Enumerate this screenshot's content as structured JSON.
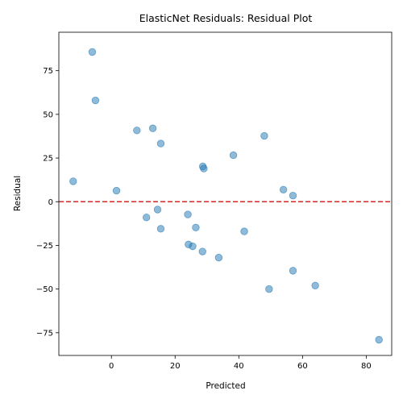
{
  "chart_data": {
    "type": "scatter",
    "title": "ElasticNet Residuals: Residual Plot",
    "xlabel": "Predicted",
    "ylabel": "Residual",
    "xlim": [
      -16.5,
      88
    ],
    "ylim": [
      -88,
      97
    ],
    "xticks": [
      0,
      20,
      40,
      60,
      80
    ],
    "yticks": [
      -75,
      -50,
      -25,
      0,
      25,
      50,
      75
    ],
    "grid": false,
    "point_color": "#1f77b4",
    "point_alpha": 0.5,
    "reference_line": {
      "y": 0,
      "color": "#d62728",
      "style": "dashed"
    },
    "points": [
      {
        "x": -6.0,
        "y": 85.7
      },
      {
        "x": -5.0,
        "y": 58.0
      },
      {
        "x": -12.0,
        "y": 11.7
      },
      {
        "x": 1.6,
        "y": 6.3
      },
      {
        "x": 8.0,
        "y": 40.8
      },
      {
        "x": 13.0,
        "y": 42.0
      },
      {
        "x": 15.5,
        "y": 33.3
      },
      {
        "x": 11.0,
        "y": -9.0
      },
      {
        "x": 14.5,
        "y": -4.5
      },
      {
        "x": 15.5,
        "y": -15.5
      },
      {
        "x": 24.0,
        "y": -7.3
      },
      {
        "x": 24.2,
        "y": -24.5
      },
      {
        "x": 25.5,
        "y": -25.5
      },
      {
        "x": 26.5,
        "y": -14.8
      },
      {
        "x": 28.7,
        "y": 20.2
      },
      {
        "x": 29.0,
        "y": 19.0
      },
      {
        "x": 28.6,
        "y": -28.5
      },
      {
        "x": 33.7,
        "y": -32.0
      },
      {
        "x": 38.3,
        "y": 26.6
      },
      {
        "x": 41.7,
        "y": -17.0
      },
      {
        "x": 48.0,
        "y": 37.7
      },
      {
        "x": 49.5,
        "y": -50.0
      },
      {
        "x": 54.0,
        "y": 6.9
      },
      {
        "x": 57.0,
        "y": 3.5
      },
      {
        "x": 57.0,
        "y": -39.5
      },
      {
        "x": 64.0,
        "y": -48.0
      },
      {
        "x": 84.0,
        "y": -79.0
      }
    ]
  }
}
